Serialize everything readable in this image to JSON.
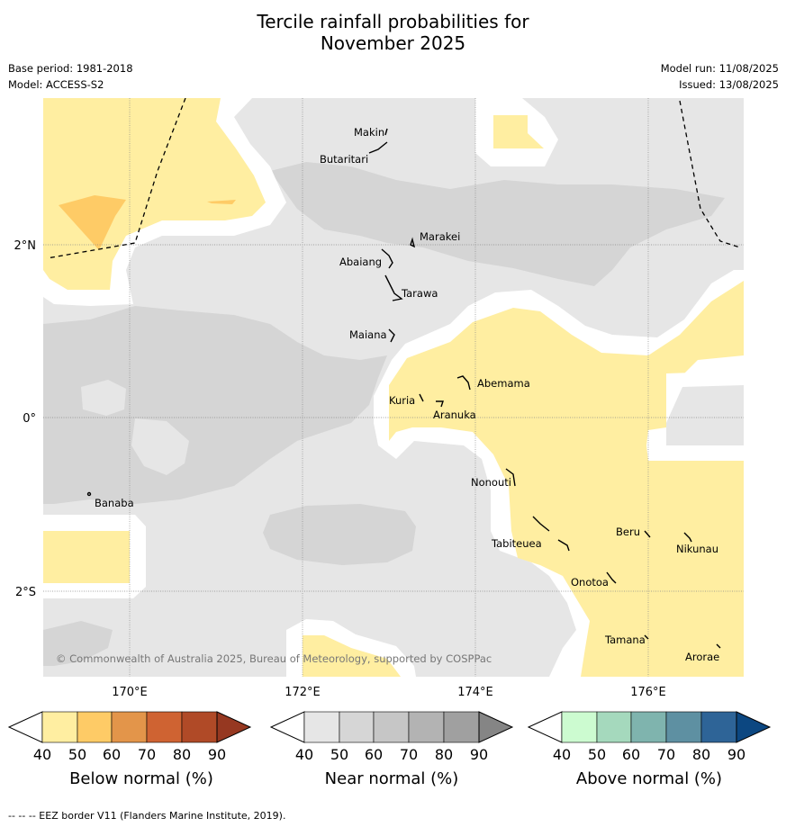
{
  "title": {
    "line1": "Tercile rainfall probabilities for",
    "line2": "November 2025"
  },
  "meta": {
    "base_period": "Base period: 1981-2018",
    "model": "Model: ACCESS-S2",
    "model_run": "Model run: 11/08/2025",
    "issued": "Issued: 13/08/2025"
  },
  "map": {
    "lon_labels": [
      "170°E",
      "172°E",
      "174°E",
      "176°E"
    ],
    "lat_labels": [
      "2°N",
      "0°",
      "2°S"
    ],
    "islands": [
      {
        "name": "Makin"
      },
      {
        "name": "Butaritari"
      },
      {
        "name": "Marakei"
      },
      {
        "name": "Abaiang"
      },
      {
        "name": "Tarawa"
      },
      {
        "name": "Maiana"
      },
      {
        "name": "Abemama"
      },
      {
        "name": "Kuria"
      },
      {
        "name": "Aranuka"
      },
      {
        "name": "Banaba"
      },
      {
        "name": "Nonouti"
      },
      {
        "name": "Tabiteuea"
      },
      {
        "name": "Beru"
      },
      {
        "name": "Nikunau"
      },
      {
        "name": "Onotoa"
      },
      {
        "name": "Tamana"
      },
      {
        "name": "Arorae"
      }
    ],
    "copyright": "© Commonwealth of Australia 2025, Bureau of Meteorology, supported by COSPPac",
    "colors": {
      "land": "#000000",
      "grid": "#888888",
      "near_40": "#e6e6e6",
      "near_50": "#d5d5d5",
      "below_40": "#ffeea1",
      "below_50": "#fecb66"
    }
  },
  "colorbars": [
    {
      "label": "Below normal (%)",
      "ticks": [
        "40",
        "50",
        "60",
        "70",
        "80",
        "90"
      ],
      "colors": [
        "#ffeea1",
        "#fecb66",
        "#e3954a",
        "#cf6332",
        "#b04a27",
        "#963821"
      ]
    },
    {
      "label": "Near normal (%)",
      "ticks": [
        "40",
        "50",
        "60",
        "70",
        "80",
        "90"
      ],
      "colors": [
        "#e6e6e6",
        "#d6d6d6",
        "#c6c6c6",
        "#b3b3b3",
        "#a0a0a0",
        "#858585"
      ]
    },
    {
      "label": "Above normal (%)",
      "ticks": [
        "40",
        "50",
        "60",
        "70",
        "80",
        "90"
      ],
      "colors": [
        "#ccfbd0",
        "#a5d9bd",
        "#7fb4ae",
        "#5e90a2",
        "#2e6497",
        "#0c4781"
      ]
    }
  ],
  "footer": "--  --  -- EEZ border V11 (Flanders Marine Institute, 2019)."
}
